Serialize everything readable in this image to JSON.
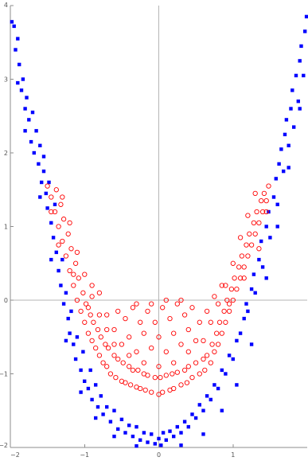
{
  "chart_data": {
    "type": "scatter",
    "xlim": [
      -2,
      2
    ],
    "ylim": [
      -2,
      4
    ],
    "grid": false,
    "frame": true,
    "axes_through_origin": true,
    "x_ticks": [
      {
        "value": -2,
        "label": "−2"
      },
      {
        "value": -1,
        "label": "−1"
      },
      {
        "value": 0,
        "label": "0"
      },
      {
        "value": 1,
        "label": "1"
      }
    ],
    "y_ticks": [
      {
        "value": -2,
        "label": "−2"
      },
      {
        "value": -1,
        "label": "−1"
      },
      {
        "value": 0,
        "label": "0"
      },
      {
        "value": 1,
        "label": "1"
      },
      {
        "value": 2,
        "label": "2"
      },
      {
        "value": 3,
        "label": "3"
      },
      {
        "value": 4,
        "label": "4"
      }
    ],
    "series": [
      {
        "marker": "filled-square",
        "color": "#0000ff",
        "points": [
          [
            -1.98,
            3.78
          ],
          [
            -1.95,
            3.72
          ],
          [
            -1.93,
            3.4
          ],
          [
            -1.9,
            3.55
          ],
          [
            -1.9,
            2.95
          ],
          [
            -1.88,
            3.2
          ],
          [
            -1.85,
            2.85
          ],
          [
            -1.83,
            3.0
          ],
          [
            -1.8,
            2.6
          ],
          [
            -1.8,
            2.3
          ],
          [
            -1.78,
            2.75
          ],
          [
            -1.75,
            2.45
          ],
          [
            -1.72,
            2.15
          ],
          [
            -1.7,
            2.55
          ],
          [
            -1.68,
            2.0
          ],
          [
            -1.65,
            2.3
          ],
          [
            -1.62,
            1.85
          ],
          [
            -1.6,
            2.1
          ],
          [
            -1.58,
            1.6
          ],
          [
            -1.55,
            1.75
          ],
          [
            -1.55,
            1.95
          ],
          [
            -1.52,
            1.45
          ],
          [
            -1.5,
            1.25
          ],
          [
            -1.48,
            1.6
          ],
          [
            -1.45,
            1.05
          ],
          [
            -1.42,
            0.85
          ],
          [
            -1.4,
            1.3
          ],
          [
            -1.38,
            0.65
          ],
          [
            -1.35,
            0.4
          ],
          [
            -1.32,
            0.2
          ],
          [
            -1.3,
            0.55
          ],
          [
            -1.28,
            -0.05
          ],
          [
            -1.25,
            0.1
          ],
          [
            -1.22,
            -0.25
          ],
          [
            -1.2,
            -0.45
          ],
          [
            -1.18,
            -0.15
          ],
          [
            -1.15,
            -0.6
          ],
          [
            -1.12,
            -0.8
          ],
          [
            -1.1,
            -0.5
          ],
          [
            -1.05,
            -0.95
          ],
          [
            -1.02,
            -0.7
          ],
          [
            -1.0,
            -1.1
          ],
          [
            -0.95,
            -1.2
          ],
          [
            -0.92,
            -0.95
          ],
          [
            -0.9,
            -1.35
          ],
          [
            -0.85,
            -1.15
          ],
          [
            -0.82,
            -1.45
          ],
          [
            -0.78,
            -1.3
          ],
          [
            -0.75,
            -1.55
          ],
          [
            -0.7,
            -1.45
          ],
          [
            -0.65,
            -1.65
          ],
          [
            -0.6,
            -1.5
          ],
          [
            -0.55,
            -1.75
          ],
          [
            -0.5,
            -1.62
          ],
          [
            -0.45,
            -1.8
          ],
          [
            -0.4,
            -1.7
          ],
          [
            -0.35,
            -1.85
          ],
          [
            -0.3,
            -1.72
          ],
          [
            -0.25,
            -1.9
          ],
          [
            -0.2,
            -1.8
          ],
          [
            -0.15,
            -1.93
          ],
          [
            -0.1,
            -1.82
          ],
          [
            -0.05,
            -1.95
          ],
          [
            0.0,
            -1.88
          ],
          [
            0.03,
            -1.97
          ],
          [
            0.06,
            -1.8
          ],
          [
            0.1,
            -1.9
          ],
          [
            0.15,
            -1.78
          ],
          [
            0.2,
            -1.85
          ],
          [
            0.25,
            -1.72
          ],
          [
            0.3,
            -1.8
          ],
          [
            0.35,
            -1.65
          ],
          [
            0.4,
            -1.72
          ],
          [
            0.45,
            -1.55
          ],
          [
            0.5,
            -1.6
          ],
          [
            0.55,
            -1.42
          ],
          [
            0.6,
            -1.5
          ],
          [
            0.65,
            -1.3
          ],
          [
            0.7,
            -1.35
          ],
          [
            0.75,
            -1.15
          ],
          [
            0.8,
            -1.2
          ],
          [
            0.85,
            -0.95
          ],
          [
            0.9,
            -1.0
          ],
          [
            0.95,
            -0.75
          ],
          [
            1.0,
            -0.8
          ],
          [
            1.05,
            -0.55
          ],
          [
            1.1,
            -0.45
          ],
          [
            1.15,
            -0.25
          ],
          [
            1.18,
            -0.05
          ],
          [
            1.2,
            -0.15
          ],
          [
            1.25,
            0.15
          ],
          [
            1.28,
            0.35
          ],
          [
            1.3,
            0.1
          ],
          [
            1.35,
            0.55
          ],
          [
            1.38,
            0.8
          ],
          [
            1.4,
            0.45
          ],
          [
            1.45,
            1.0
          ],
          [
            1.48,
            1.2
          ],
          [
            1.5,
            0.85
          ],
          [
            1.55,
            1.4
          ],
          [
            1.58,
            1.65
          ],
          [
            1.6,
            1.3
          ],
          [
            1.62,
            1.85
          ],
          [
            1.65,
            2.05
          ],
          [
            1.68,
            1.75
          ],
          [
            1.7,
            2.25
          ],
          [
            1.72,
            2.45
          ],
          [
            1.75,
            2.1
          ],
          [
            1.78,
            2.6
          ],
          [
            1.8,
            2.85
          ],
          [
            1.82,
            2.35
          ],
          [
            1.85,
            3.05
          ],
          [
            1.88,
            2.7
          ],
          [
            1.9,
            3.25
          ],
          [
            1.92,
            3.45
          ],
          [
            1.95,
            3.05
          ],
          [
            1.97,
            3.65
          ],
          [
            1.99,
            3.85
          ],
          [
            -1.6,
            1.4
          ],
          [
            -1.45,
            0.55
          ],
          [
            -1.25,
            -0.55
          ],
          [
            -1.05,
            -1.25
          ],
          [
            -0.85,
            -1.6
          ],
          [
            -0.6,
            -1.85
          ],
          [
            -0.3,
            -1.98
          ],
          [
            0.3,
            -1.97
          ],
          [
            0.6,
            -1.82
          ],
          [
            0.85,
            -1.5
          ],
          [
            1.05,
            -1.15
          ],
          [
            1.25,
            -0.6
          ],
          [
            1.45,
            0.3
          ],
          [
            1.6,
            1.0
          ],
          [
            1.75,
            1.8
          ],
          [
            1.9,
            2.6
          ]
        ]
      },
      {
        "marker": "open-circle",
        "color": "#ff0000",
        "points": [
          [
            -1.5,
            1.55
          ],
          [
            -1.45,
            1.4
          ],
          [
            -1.4,
            1.2
          ],
          [
            -1.38,
            1.5
          ],
          [
            -1.35,
            1.0
          ],
          [
            -1.32,
            1.3
          ],
          [
            -1.3,
            0.8
          ],
          [
            -1.28,
            1.1
          ],
          [
            -1.25,
            0.6
          ],
          [
            -1.22,
            0.9
          ],
          [
            -1.2,
            0.4
          ],
          [
            -1.18,
            0.7
          ],
          [
            -1.15,
            0.2
          ],
          [
            -1.12,
            0.5
          ],
          [
            -1.1,
            0.0
          ],
          [
            -1.08,
            0.3
          ],
          [
            -1.05,
            -0.15
          ],
          [
            -1.02,
            0.1
          ],
          [
            -1.0,
            -0.3
          ],
          [
            -0.98,
            -0.05
          ],
          [
            -0.95,
            -0.45
          ],
          [
            -0.92,
            -0.2
          ],
          [
            -0.9,
            -0.55
          ],
          [
            -0.88,
            -0.3
          ],
          [
            -0.85,
            -0.65
          ],
          [
            -0.82,
            -0.4
          ],
          [
            -0.8,
            -0.75
          ],
          [
            -0.78,
            -0.5
          ],
          [
            -0.75,
            -0.85
          ],
          [
            -0.72,
            -0.6
          ],
          [
            -0.7,
            -0.9
          ],
          [
            -0.68,
            -0.65
          ],
          [
            -0.65,
            -1.0
          ],
          [
            -0.6,
            -0.75
          ],
          [
            -0.58,
            -1.05
          ],
          [
            -0.55,
            -0.8
          ],
          [
            -0.5,
            -1.1
          ],
          [
            -0.48,
            -0.85
          ],
          [
            -0.45,
            -1.12
          ],
          [
            -0.4,
            -0.9
          ],
          [
            -0.38,
            -1.15
          ],
          [
            -0.35,
            -0.95
          ],
          [
            -0.3,
            -1.18
          ],
          [
            -0.28,
            -0.95
          ],
          [
            -0.25,
            -1.2
          ],
          [
            -0.2,
            -1.0
          ],
          [
            -0.18,
            -1.22
          ],
          [
            -0.15,
            -1.02
          ],
          [
            -0.1,
            -1.25
          ],
          [
            -0.05,
            -1.05
          ],
          [
            0.0,
            -1.28
          ],
          [
            0.02,
            -1.05
          ],
          [
            0.05,
            -1.25
          ],
          [
            0.1,
            -1.02
          ],
          [
            0.15,
            -1.22
          ],
          [
            0.18,
            -1.0
          ],
          [
            0.2,
            -1.2
          ],
          [
            0.25,
            -0.98
          ],
          [
            0.3,
            -1.15
          ],
          [
            0.35,
            -0.95
          ],
          [
            0.38,
            -1.12
          ],
          [
            0.4,
            -0.9
          ],
          [
            0.45,
            -1.05
          ],
          [
            0.5,
            -0.85
          ],
          [
            0.55,
            -1.0
          ],
          [
            0.6,
            -0.8
          ],
          [
            0.62,
            -0.95
          ],
          [
            0.65,
            -0.75
          ],
          [
            0.7,
            -0.85
          ],
          [
            0.72,
            -0.6
          ],
          [
            0.75,
            -0.7
          ],
          [
            0.78,
            -0.45
          ],
          [
            0.8,
            -0.6
          ],
          [
            0.82,
            -0.3
          ],
          [
            0.85,
            -0.45
          ],
          [
            0.88,
            -0.15
          ],
          [
            0.9,
            -0.3
          ],
          [
            0.92,
            0.0
          ],
          [
            0.95,
            -0.15
          ],
          [
            0.98,
            0.15
          ],
          [
            1.0,
            0.0
          ],
          [
            1.02,
            0.3
          ],
          [
            1.05,
            0.15
          ],
          [
            1.08,
            0.45
          ],
          [
            1.1,
            0.3
          ],
          [
            1.12,
            0.6
          ],
          [
            1.15,
            0.45
          ],
          [
            1.18,
            0.75
          ],
          [
            1.2,
            0.6
          ],
          [
            1.22,
            0.9
          ],
          [
            1.25,
            0.75
          ],
          [
            1.28,
            1.05
          ],
          [
            1.3,
            0.9
          ],
          [
            1.32,
            1.2
          ],
          [
            1.35,
            1.05
          ],
          [
            1.38,
            1.35
          ],
          [
            1.4,
            1.2
          ],
          [
            1.42,
            1.45
          ],
          [
            1.45,
            1.35
          ],
          [
            1.48,
            1.55
          ],
          [
            -0.6,
            -0.4
          ],
          [
            -0.5,
            -0.6
          ],
          [
            -0.4,
            -0.5
          ],
          [
            -0.3,
            -0.7
          ],
          [
            -0.2,
            -0.45
          ],
          [
            -0.1,
            -0.65
          ],
          [
            0.0,
            -0.5
          ],
          [
            0.1,
            -0.7
          ],
          [
            0.2,
            -0.45
          ],
          [
            0.3,
            -0.6
          ],
          [
            0.4,
            -0.4
          ],
          [
            0.5,
            -0.55
          ],
          [
            -0.7,
            -0.2
          ],
          [
            -0.55,
            -0.15
          ],
          [
            -0.45,
            -0.25
          ],
          [
            -0.35,
            -0.1
          ],
          [
            -0.25,
            -0.3
          ],
          [
            -0.15,
            -0.15
          ],
          [
            -0.05,
            -0.3
          ],
          [
            0.05,
            -0.1
          ],
          [
            0.15,
            -0.25
          ],
          [
            0.25,
            -0.05
          ],
          [
            0.35,
            -0.2
          ],
          [
            0.45,
            -0.1
          ],
          [
            0.55,
            -0.3
          ],
          [
            0.65,
            -0.15
          ],
          [
            -0.9,
            0.2
          ],
          [
            -0.8,
            0.1
          ],
          [
            0.75,
            0.05
          ],
          [
            0.85,
            0.2
          ],
          [
            -1.3,
            1.4
          ],
          [
            -1.2,
            1.05
          ],
          [
            -1.1,
            0.65
          ],
          [
            -1.0,
            0.35
          ],
          [
            -0.9,
            0.05
          ],
          [
            -0.8,
            -0.2
          ],
          [
            -0.7,
            -0.4
          ],
          [
            0.7,
            -0.3
          ],
          [
            0.8,
            -0.05
          ],
          [
            0.9,
            0.2
          ],
          [
            1.0,
            0.5
          ],
          [
            1.1,
            0.85
          ],
          [
            1.2,
            1.15
          ],
          [
            1.3,
            1.45
          ],
          [
            -0.2,
            -0.85
          ],
          [
            0.2,
            -0.85
          ],
          [
            0.0,
            -0.9
          ],
          [
            -0.4,
            -0.75
          ],
          [
            0.4,
            -0.7
          ],
          [
            -0.6,
            -0.6
          ],
          [
            0.6,
            -0.55
          ],
          [
            -1.45,
            1.2
          ],
          [
            1.45,
            1.2
          ],
          [
            -1.35,
            0.75
          ],
          [
            1.35,
            0.7
          ],
          [
            -1.15,
            0.35
          ],
          [
            1.15,
            0.3
          ],
          [
            -0.95,
            -0.1
          ],
          [
            0.95,
            -0.05
          ],
          [
            -0.1,
            -0.05
          ],
          [
            0.1,
            -0.0
          ],
          [
            -0.3,
            -0.05
          ],
          [
            0.3,
            0.0
          ]
        ]
      }
    ]
  }
}
